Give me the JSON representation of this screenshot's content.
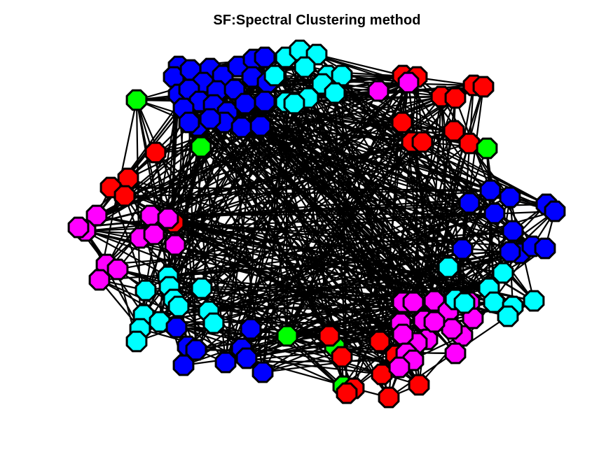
{
  "title": "SF:Spectral Clustering method",
  "graph": {
    "edge_color": "#000000",
    "node_outline_color": "#000000",
    "cluster_colors": {
      "blue": "#0000ff",
      "cyan": "#00ffff",
      "red": "#ff0000",
      "magenta": "#ff00ff",
      "green": "#00ff00"
    }
  }
}
